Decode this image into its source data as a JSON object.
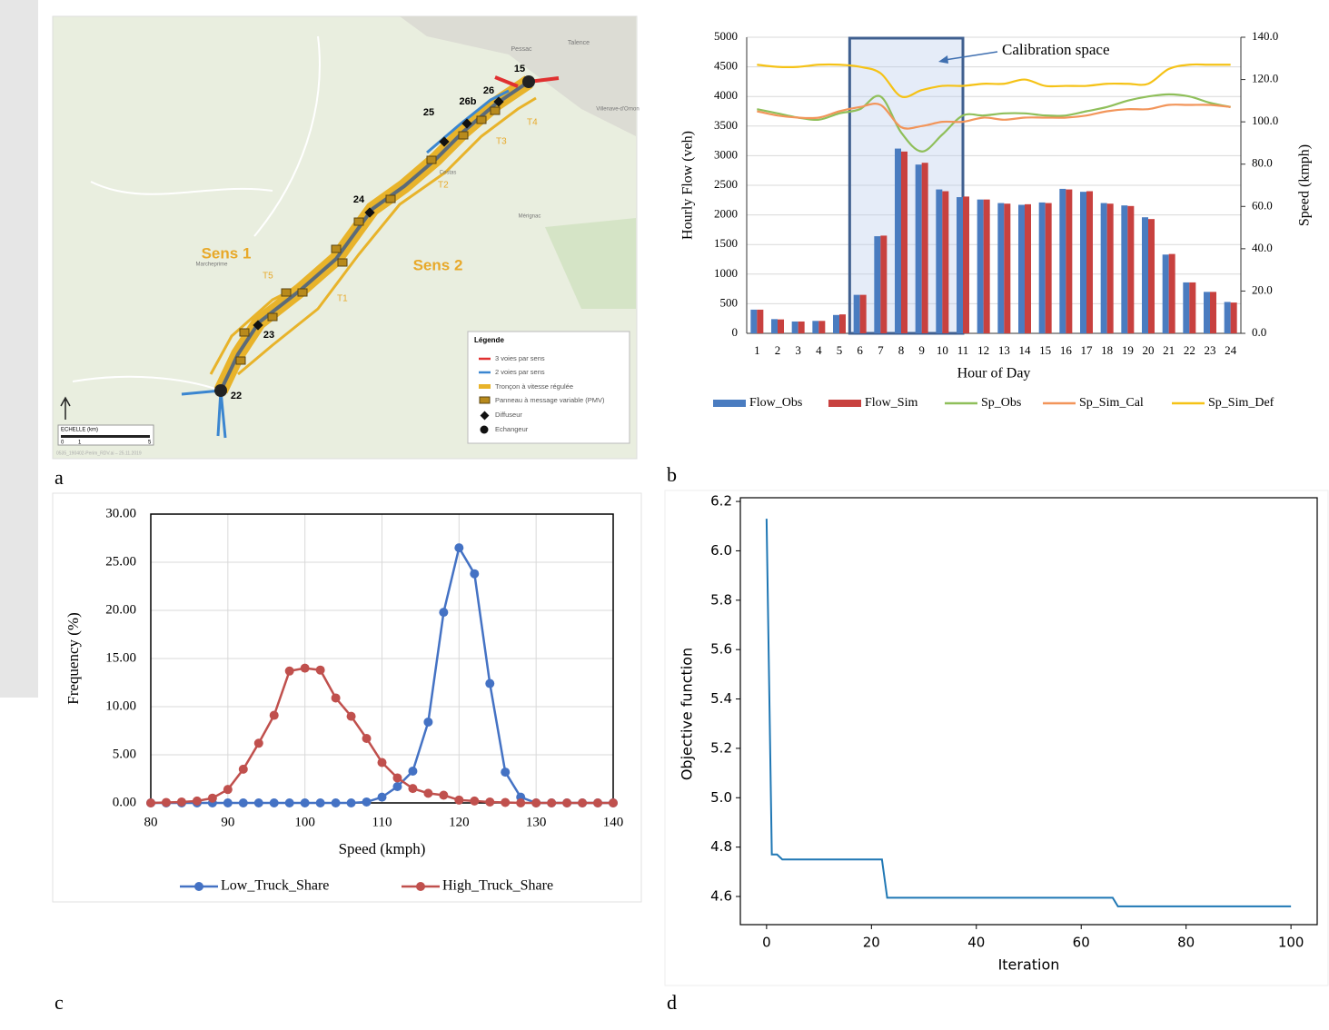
{
  "panels": [
    "a",
    "b",
    "c",
    "d"
  ],
  "map": {
    "directions": [
      "Sens 1",
      "Sens 2"
    ],
    "nodes": [
      "15",
      "26",
      "26b",
      "25",
      "24",
      "23",
      "22"
    ],
    "sections": [
      "T1",
      "T2",
      "T3",
      "T4",
      "T5"
    ],
    "places": [
      "Pessac",
      "Talence",
      "Villenave-d'Ornon",
      "Marcheprime",
      "Cestas",
      "Mérignac"
    ],
    "legend": {
      "title": "Légende",
      "items": [
        "3 voies par sens",
        "2 voies par sens",
        "Tronçon à vitesse régulée",
        "Panneau à message variable (PMV)",
        "Diffuseur",
        "Echangeur"
      ]
    },
    "scale": {
      "title": "ECHELLE (km)",
      "ticks": [
        "0",
        "1",
        "5"
      ]
    },
    "credit": "0535_190402-Perim_RDV.ai – 25.11.2019"
  },
  "chart_data": [
    {
      "type": "bar",
      "categories": [
        "1",
        "2",
        "3",
        "4",
        "5",
        "6",
        "7",
        "8",
        "9",
        "10",
        "11",
        "12",
        "13",
        "14",
        "15",
        "16",
        "17",
        "18",
        "19",
        "20",
        "21",
        "22",
        "23",
        "24"
      ],
      "x_label": "Hour of Day",
      "y_label": "Hourly Flow (veh)",
      "y2_label": "Speed (kmph)",
      "ylim": [
        0,
        5000
      ],
      "yticks": [
        0,
        500,
        1000,
        1500,
        2000,
        2500,
        3000,
        3500,
        4000,
        4500,
        5000
      ],
      "y2lim": [
        0,
        140
      ],
      "y2ticks": [
        {
          "value": 0,
          "label": "0.0"
        },
        {
          "value": 20,
          "label": "20.0"
        },
        {
          "value": 40,
          "label": "40.0"
        },
        {
          "value": 60,
          "label": "60.0"
        },
        {
          "value": 80,
          "label": "80.0"
        },
        {
          "value": 100,
          "label": "100.0"
        },
        {
          "value": 120,
          "label": "120.0"
        },
        {
          "value": 140,
          "label": "140.0"
        }
      ],
      "grid": true,
      "legend": "bottom",
      "annotation": {
        "text": "Calibration space",
        "x_range": [
          "6",
          "11"
        ]
      },
      "series": [
        {
          "name": "Flow_Obs",
          "color": "#4a7cc0",
          "values": [
            400,
            240,
            200,
            210,
            310,
            650,
            1640,
            3120,
            2850,
            2430,
            2300,
            2260,
            2200,
            2170,
            2210,
            2440,
            2390,
            2200,
            2160,
            1960,
            1330,
            860,
            700,
            530
          ]
        },
        {
          "name": "Flow_Sim",
          "color": "#c8413f",
          "values": [
            400,
            235,
            200,
            210,
            320,
            650,
            1650,
            3070,
            2880,
            2400,
            2310,
            2260,
            2190,
            2180,
            2200,
            2430,
            2400,
            2190,
            2150,
            1930,
            1340,
            860,
            700,
            520
          ]
        },
        {
          "name": "Sp_Obs",
          "color": "#8fbf5a",
          "axis": "y2",
          "values": [
            106,
            104,
            102,
            101,
            104,
            106,
            112,
            95,
            86,
            94,
            103,
            103,
            104,
            104,
            103,
            103,
            105,
            107,
            110,
            112,
            113,
            112,
            109,
            107
          ]
        },
        {
          "name": "Sp_Sim_Cal",
          "color": "#f2955a",
          "axis": "y2",
          "values": [
            105,
            103,
            102,
            102,
            105,
            107,
            108,
            97.5,
            98,
            100,
            100,
            102,
            101,
            102,
            102,
            102,
            103,
            105,
            106,
            106,
            108,
            108,
            108,
            107
          ]
        },
        {
          "name": "Sp_Sim_Def",
          "color": "#f5c216",
          "axis": "y2",
          "values": [
            127,
            126,
            126,
            127,
            127,
            126,
            123,
            112,
            115,
            117,
            117,
            118,
            118,
            120,
            117,
            117,
            117,
            118,
            118,
            118,
            125,
            127,
            127,
            127
          ]
        }
      ]
    },
    {
      "type": "line",
      "x_label": "Speed (kmph)",
      "y_label": "Frequency (%)",
      "x": [
        80,
        82,
        84,
        86,
        88,
        90,
        92,
        94,
        96,
        98,
        100,
        102,
        104,
        106,
        108,
        110,
        112,
        114,
        116,
        118,
        120,
        122,
        124,
        126,
        128,
        130,
        132,
        134,
        136,
        138,
        140
      ],
      "xlim": [
        80,
        140
      ],
      "xticks": [
        80,
        90,
        100,
        110,
        120,
        130,
        140
      ],
      "ylim": [
        0,
        30
      ],
      "yticks": [
        {
          "value": 0,
          "label": "0.00"
        },
        {
          "value": 5,
          "label": "5.00"
        },
        {
          "value": 10,
          "label": "10.00"
        },
        {
          "value": 15,
          "label": "15.00"
        },
        {
          "value": 20,
          "label": "20.00"
        },
        {
          "value": 25,
          "label": "25.00"
        },
        {
          "value": 30,
          "label": "30.00"
        }
      ],
      "grid": true,
      "legend": "bottom",
      "markers": true,
      "series": [
        {
          "name": "Low_Truck_Share",
          "color": "#4472c4",
          "values": [
            0,
            0,
            0,
            0,
            0,
            0,
            0,
            0,
            0,
            0,
            0,
            0,
            0,
            0,
            0.1,
            0.6,
            1.7,
            3.3,
            8.4,
            19.8,
            26.5,
            23.8,
            12.4,
            3.2,
            0.6,
            0,
            0,
            0,
            0,
            0,
            0
          ]
        },
        {
          "name": "High_Truck_Share",
          "color": "#c0504d",
          "values": [
            0,
            0.05,
            0.1,
            0.2,
            0.5,
            1.4,
            3.5,
            6.2,
            9.1,
            13.7,
            14.0,
            13.8,
            10.9,
            9.0,
            6.7,
            4.2,
            2.6,
            1.5,
            1.0,
            0.8,
            0.3,
            0.2,
            0.1,
            0.05,
            0,
            0,
            0,
            0,
            0,
            0,
            0
          ]
        }
      ]
    },
    {
      "type": "line",
      "x_label": "Iteration",
      "y_label": "Objective function",
      "x": [
        0,
        1,
        2,
        3,
        22,
        23,
        66,
        67,
        100
      ],
      "values": [
        6.13,
        4.77,
        4.77,
        4.75,
        4.75,
        4.595,
        4.595,
        4.56,
        4.56
      ],
      "color": "#1f77b4",
      "xlim": [
        -5,
        105
      ],
      "xticks": [
        0,
        20,
        40,
        60,
        80,
        100
      ],
      "ylim": [
        4.486,
        6.215
      ],
      "yticks": [
        4.6,
        4.8,
        {
          "value": 5,
          "label": "5.0"
        },
        5.2,
        5.4,
        5.6,
        5.8,
        {
          "value": 6,
          "label": "6.0"
        },
        6.2
      ]
    }
  ]
}
